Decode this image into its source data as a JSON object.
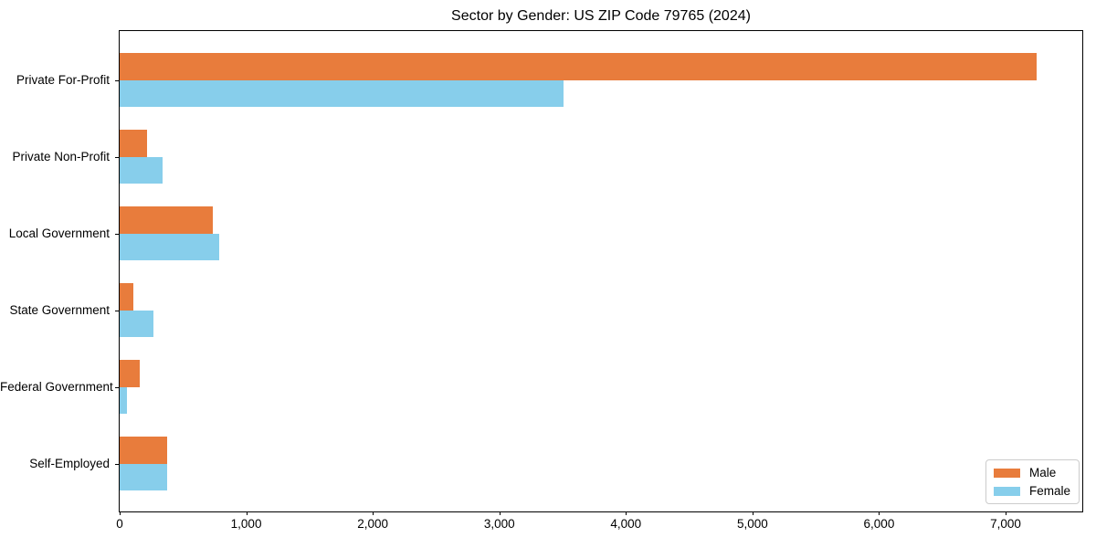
{
  "chart_data": {
    "type": "bar",
    "orientation": "horizontal",
    "title": "Sector by Gender: US ZIP Code 79765 (2024)",
    "categories": [
      "Private For-Profit",
      "Private Non-Profit",
      "Local Government",
      "State Government",
      "Federal Government",
      "Self-Employed"
    ],
    "series": [
      {
        "name": "Male",
        "color": "#e87c3c",
        "values": [
          7244,
          213,
          738,
          105,
          160,
          375
        ]
      },
      {
        "name": "Female",
        "color": "#87ceeb",
        "values": [
          3510,
          340,
          790,
          267,
          56,
          375
        ]
      }
    ],
    "xlabel": "",
    "ylabel": "",
    "xlim": [
      0,
      7606
    ],
    "x_ticks": [
      0,
      1000,
      2000,
      3000,
      4000,
      5000,
      6000,
      7000
    ],
    "x_tick_labels": [
      "0",
      "1,000",
      "2,000",
      "3,000",
      "4,000",
      "5,000",
      "6,000",
      "7,000"
    ],
    "grid": false,
    "legend_position": "lower right",
    "colors": {
      "spine": "#000000",
      "text": "#000000",
      "background": "#ffffff",
      "legend_border": "#cccccc"
    }
  }
}
